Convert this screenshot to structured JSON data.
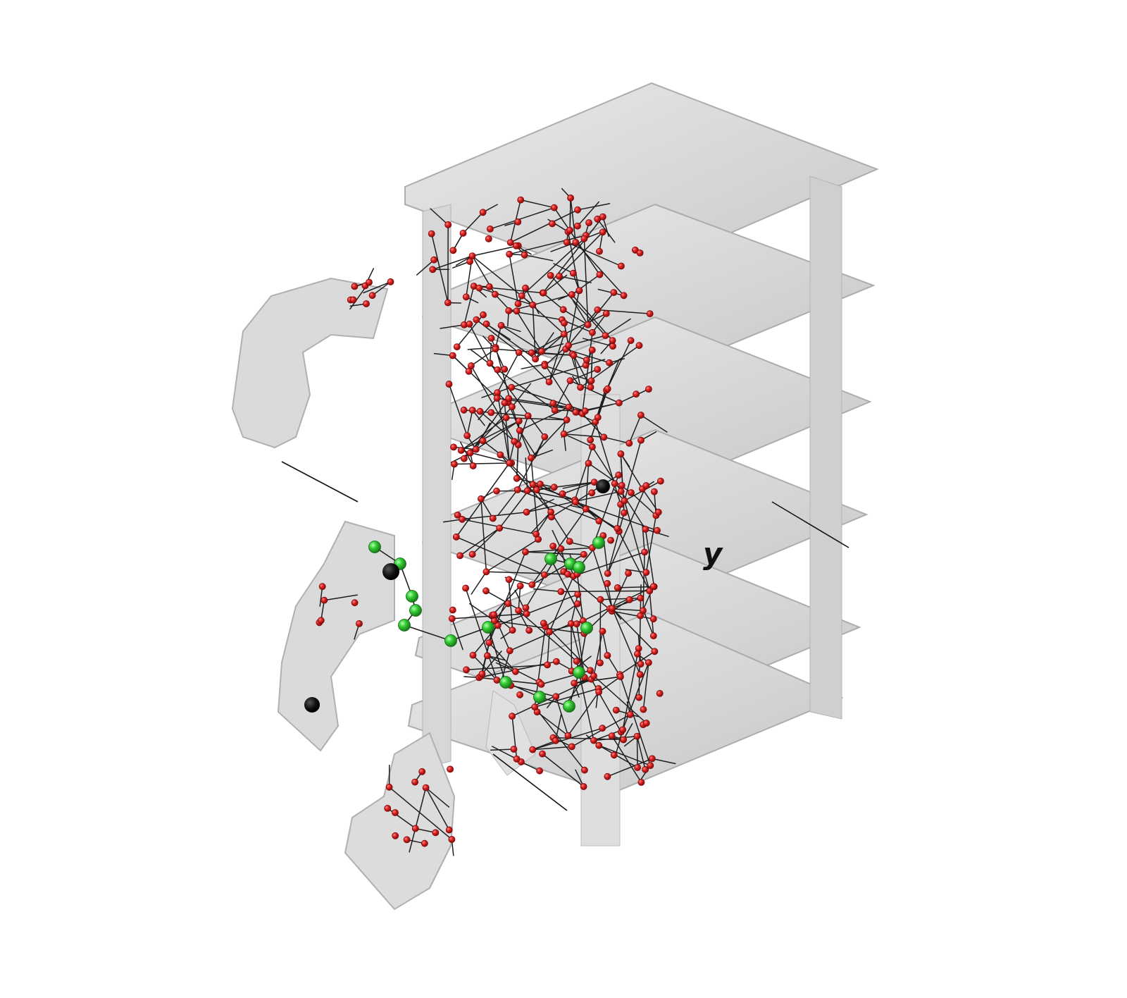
{
  "axes": {
    "y_label": "y"
  },
  "colors": {
    "background": "#ffffff",
    "volume_fill": "#8c8c8c",
    "volume_edge": "#5a5a5a",
    "graph_edge": "#1e1e1e",
    "node_red": "#d42020",
    "node_red_highlight": "#ff6a6a",
    "node_green": "#2ec92e",
    "node_green_highlight": "#8af08a",
    "marker_black": "#111111"
  },
  "legend": {
    "node_types": [
      "red-node",
      "green-node",
      "black-marker"
    ]
  }
}
